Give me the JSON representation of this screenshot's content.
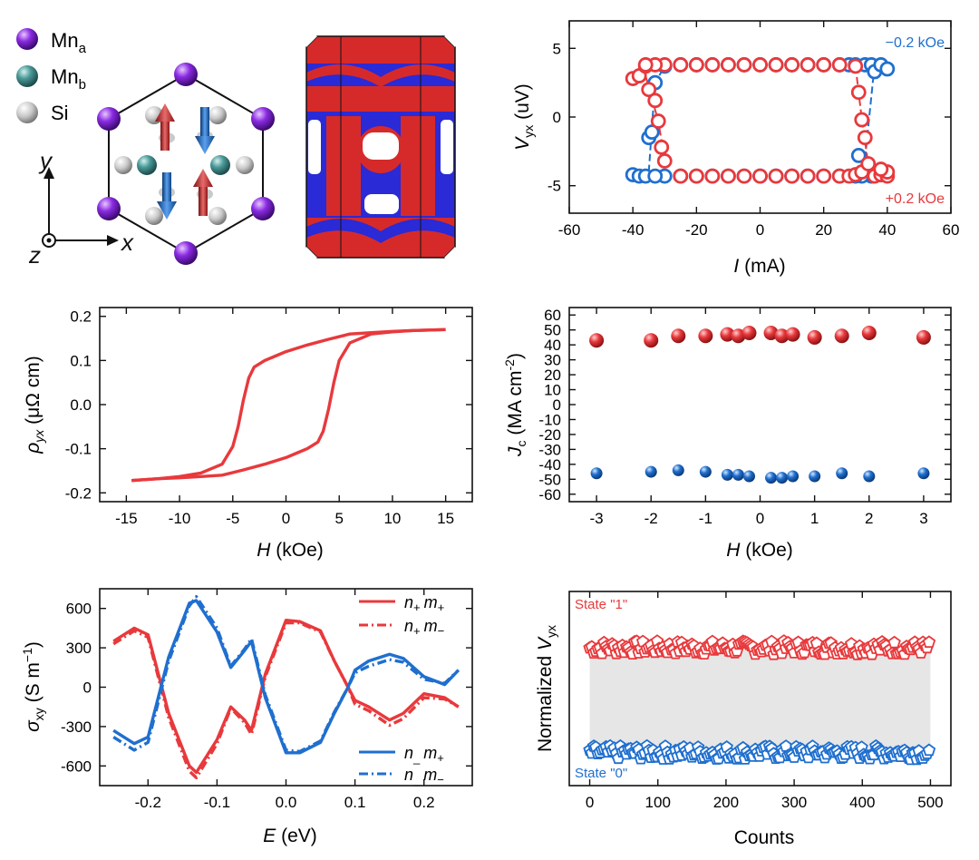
{
  "colors": {
    "red": "#e8393c",
    "blue": "#1f6fcf",
    "mn_a": "#7a2bd1",
    "mn_b": "#3f8a8a",
    "si": "#c8c8c8",
    "frame": "#111111",
    "grid_fill": "#e6e6e6"
  },
  "legend_atoms": [
    {
      "sym": "Mn",
      "sub": "a",
      "icon": "purple-sphere"
    },
    {
      "sym": "Mn",
      "sub": "b",
      "icon": "teal-sphere"
    },
    {
      "sym": "Si",
      "sub": "",
      "icon": "gray-sphere"
    }
  ],
  "axes_labels": {
    "y": "y",
    "z": "z",
    "x": "x"
  },
  "chart_data": [
    {
      "id": "vyx-vs-current",
      "type": "scatter",
      "xlabel_italic": "I",
      "xlabel_rest": " (mA)",
      "ylabel_italic": "V",
      "ylabel_sub": "yx",
      "ylabel_rest": " (uV)",
      "xlim": [
        -60,
        60
      ],
      "ylim": [
        -7,
        7
      ],
      "xticks": [
        -60,
        -40,
        -20,
        0,
        20,
        40,
        60
      ],
      "yticks": [
        -5,
        0,
        5
      ],
      "annotations": [
        {
          "text": "−0.2 kOe",
          "color": "blue"
        },
        {
          "text": "+0.2 kOe",
          "color": "red"
        }
      ],
      "series": [
        {
          "name": "−0.2 kOe",
          "color": "blue",
          "points": [
            [
              -40,
              -4.2
            ],
            [
              -38,
              -4.3
            ],
            [
              -36,
              -4.3
            ],
            [
              -35,
              -1.5
            ],
            [
              -34,
              -1.1
            ],
            [
              -33,
              2.5
            ],
            [
              -30,
              3.7
            ],
            [
              -25,
              3.8
            ],
            [
              -20,
              3.8
            ],
            [
              -15,
              3.8
            ],
            [
              -10,
              3.8
            ],
            [
              -5,
              3.8
            ],
            [
              0,
              3.8
            ],
            [
              5,
              3.8
            ],
            [
              10,
              3.8
            ],
            [
              15,
              3.8
            ],
            [
              20,
              3.8
            ],
            [
              25,
              3.8
            ],
            [
              28,
              3.8
            ],
            [
              30,
              3.8
            ],
            [
              33,
              3.8
            ],
            [
              35,
              3.8
            ],
            [
              36,
              3.3
            ],
            [
              38,
              3.8
            ],
            [
              40,
              3.5
            ],
            [
              38,
              -4.2
            ],
            [
              35,
              -4.3
            ],
            [
              32,
              -4.3
            ],
            [
              30,
              -4.3
            ],
            [
              31,
              -2.8
            ],
            [
              30,
              -4.2
            ],
            [
              25,
              -4.3
            ],
            [
              20,
              -4.3
            ],
            [
              15,
              -4.3
            ],
            [
              10,
              -4.3
            ],
            [
              5,
              -4.3
            ],
            [
              0,
              -4.3
            ],
            [
              -5,
              -4.3
            ],
            [
              -10,
              -4.3
            ],
            [
              -15,
              -4.3
            ],
            [
              -20,
              -4.3
            ],
            [
              -25,
              -4.3
            ],
            [
              -30,
              -4.3
            ],
            [
              -33,
              -4.3
            ]
          ]
        },
        {
          "name": "+0.2 kOe",
          "color": "red",
          "points": [
            [
              -40,
              2.8
            ],
            [
              -38,
              3.0
            ],
            [
              -36,
              3.7
            ],
            [
              -35,
              2.0
            ],
            [
              -33,
              1.2
            ],
            [
              -32,
              -0.3
            ],
            [
              -31,
              -2.2
            ],
            [
              -30,
              -3.2
            ],
            [
              -25,
              -4.3
            ],
            [
              -20,
              -4.3
            ],
            [
              -15,
              -4.3
            ],
            [
              -10,
              -4.3
            ],
            [
              -5,
              -4.3
            ],
            [
              0,
              -4.3
            ],
            [
              5,
              -4.3
            ],
            [
              10,
              -4.3
            ],
            [
              15,
              -4.3
            ],
            [
              20,
              -4.3
            ],
            [
              25,
              -4.3
            ],
            [
              28,
              -4.3
            ],
            [
              30,
              -4.2
            ],
            [
              32,
              -4.0
            ],
            [
              34,
              -3.4
            ],
            [
              36,
              -4.3
            ],
            [
              38,
              -4.2
            ],
            [
              40,
              -4.3
            ],
            [
              40,
              -4.0
            ],
            [
              38,
              -3.8
            ],
            [
              33,
              -1.5
            ],
            [
              32,
              -0.2
            ],
            [
              31,
              1.8
            ],
            [
              30,
              3.7
            ],
            [
              25,
              3.8
            ],
            [
              20,
              3.8
            ],
            [
              15,
              3.8
            ],
            [
              10,
              3.8
            ],
            [
              5,
              3.8
            ],
            [
              0,
              3.8
            ],
            [
              -5,
              3.8
            ],
            [
              -10,
              3.8
            ],
            [
              -15,
              3.8
            ],
            [
              -20,
              3.8
            ],
            [
              -25,
              3.8
            ],
            [
              -30,
              3.8
            ],
            [
              -33,
              3.8
            ],
            [
              -36,
              3.8
            ]
          ]
        }
      ],
      "guide_lines": [
        {
          "color": "blue",
          "points": [
            [
              -35,
              -4.0
            ],
            [
              -33,
              2.5
            ],
            [
              -30,
              3.7
            ]
          ]
        },
        {
          "color": "blue",
          "points": [
            [
              36,
              3.8
            ],
            [
              33,
              -3.0
            ],
            [
              31,
              -4.3
            ]
          ]
        },
        {
          "color": "red",
          "points": [
            [
              -36,
              3.0
            ],
            [
              -32,
              -0.3
            ],
            [
              -30,
              -3.2
            ]
          ]
        },
        {
          "color": "red",
          "points": [
            [
              30,
              3.7
            ],
            [
              32,
              -0.2
            ],
            [
              34,
              -3.4
            ]
          ]
        }
      ]
    },
    {
      "id": "rho-yx-vs-field",
      "type": "line",
      "xlabel_italic": "H",
      "xlabel_rest": " (kOe)",
      "ylabel_italic": "ρ",
      "ylabel_sub": "yx",
      "ylabel_rest": " (μΩ cm)",
      "xlim": [
        -17.5,
        17.5
      ],
      "ylim": [
        -0.22,
        0.22
      ],
      "xticks": [
        -15,
        -10,
        -5,
        0,
        5,
        10,
        15
      ],
      "yticks": [
        -0.2,
        -0.1,
        0.0,
        0.1,
        0.2
      ],
      "ytick_labels": [
        "-0.2",
        "-0.1",
        "0.0",
        "0.1",
        "0.2"
      ],
      "series": [
        {
          "name": "",
          "color": "red",
          "x": [
            -14.5,
            -12,
            -10,
            -8,
            -6,
            -5,
            -4.5,
            -4,
            -3.5,
            -3,
            -2,
            -1,
            0,
            2,
            4,
            6,
            8,
            10,
            12,
            15
          ],
          "y": [
            -0.172,
            -0.168,
            -0.163,
            -0.155,
            -0.135,
            -0.095,
            -0.05,
            0.01,
            0.06,
            0.085,
            0.1,
            0.11,
            0.12,
            0.135,
            0.148,
            0.16,
            0.163,
            0.166,
            0.168,
            0.17
          ]
        },
        {
          "name": "",
          "color": "red",
          "x": [
            15,
            12,
            10,
            8,
            6,
            5,
            4.5,
            4,
            3.5,
            3,
            2,
            1,
            0,
            -2,
            -4,
            -6,
            -8,
            -10,
            -12,
            -14.5
          ],
          "y": [
            0.17,
            0.168,
            0.165,
            0.16,
            0.14,
            0.1,
            0.05,
            -0.01,
            -0.06,
            -0.085,
            -0.1,
            -0.11,
            -0.12,
            -0.135,
            -0.148,
            -0.16,
            -0.163,
            -0.166,
            -0.168,
            -0.172
          ]
        }
      ]
    },
    {
      "id": "jc-vs-field",
      "type": "scatter",
      "xlabel_italic": "H",
      "xlabel_rest": " (kOe)",
      "ylabel_italic": "J",
      "ylabel_sub": "c",
      "ylabel_rest": " (MA cm",
      "ylabel_sup": "-2",
      "ylabel_tail": ")",
      "xlim": [
        -3.5,
        3.5
      ],
      "ylim": [
        -65,
        65
      ],
      "xticks": [
        -3,
        -2,
        -1,
        0,
        1,
        2,
        3
      ],
      "yticks": [
        -60,
        -50,
        -40,
        -30,
        -20,
        -10,
        0,
        10,
        20,
        30,
        40,
        50,
        60
      ],
      "series": [
        {
          "name": "",
          "color": "red",
          "x": [
            -3,
            -2,
            -1.5,
            -1,
            -0.6,
            -0.4,
            -0.2,
            0.2,
            0.4,
            0.6,
            1,
            1.5,
            2,
            3
          ],
          "y": [
            43,
            43,
            46,
            46,
            47,
            46,
            48,
            48,
            46,
            47,
            45,
            46,
            48,
            45
          ]
        },
        {
          "name": "",
          "color": "blue",
          "x": [
            -3,
            -2,
            -1.5,
            -1,
            -0.6,
            -0.4,
            -0.2,
            0.2,
            0.4,
            0.6,
            1,
            1.5,
            2,
            3
          ],
          "y": [
            -46,
            -45,
            -44,
            -45,
            -47,
            -47,
            -48,
            -49,
            -49,
            -48,
            -48,
            -46,
            -48,
            -46
          ]
        }
      ]
    },
    {
      "id": "sigma-xy-vs-energy",
      "type": "line",
      "xlabel_italic": "E",
      "xlabel_rest": " (eV)",
      "ylabel_italic": "σ",
      "ylabel_sub": "xy",
      "ylabel_rest": " (S m",
      "ylabel_sup": "−1",
      "ylabel_tail": ")",
      "xlim": [
        -0.27,
        0.27
      ],
      "ylim": [
        -750,
        750
      ],
      "xticks": [
        -0.2,
        -0.1,
        0.0,
        0.1,
        0.2
      ],
      "xtick_labels": [
        "-0.2",
        "-0.1",
        "0.0",
        "0.1",
        "0.2"
      ],
      "yticks": [
        -600,
        -300,
        0,
        300,
        600
      ],
      "ytick_labels": [
        "-600",
        "-300",
        "0",
        "300",
        "600"
      ],
      "series": [
        {
          "name": "n+ m+",
          "label_n": "n",
          "label_ns": "+",
          "label_m": "m",
          "label_ms": "+",
          "color": "red",
          "dash": "solid",
          "x": [
            -0.25,
            -0.22,
            -0.2,
            -0.17,
            -0.14,
            -0.13,
            -0.1,
            -0.08,
            -0.06,
            -0.05,
            -0.03,
            0.0,
            0.02,
            0.05,
            0.07,
            0.09,
            0.1,
            0.12,
            0.15,
            0.17,
            0.2,
            0.23,
            0.25
          ],
          "y": [
            350,
            450,
            400,
            -200,
            -600,
            -650,
            -400,
            -150,
            -250,
            -330,
            100,
            510,
            500,
            430,
            200,
            0,
            -100,
            -150,
            -250,
            -200,
            -50,
            -80,
            -150
          ]
        },
        {
          "name": "n+ m−",
          "label_n": "n",
          "label_ns": "+",
          "label_m": "m",
          "label_ms": "−",
          "color": "red",
          "dash": "dashdot",
          "x": [
            -0.25,
            -0.22,
            -0.2,
            -0.17,
            -0.14,
            -0.13,
            -0.1,
            -0.08,
            -0.06,
            -0.05,
            -0.03,
            0.0,
            0.02,
            0.05,
            0.07,
            0.09,
            0.1,
            0.12,
            0.15,
            0.17,
            0.2,
            0.23,
            0.25
          ],
          "y": [
            330,
            430,
            380,
            -230,
            -640,
            -690,
            -430,
            -160,
            -270,
            -360,
            80,
            490,
            490,
            420,
            200,
            0,
            -130,
            -180,
            -290,
            -240,
            -80,
            -90,
            -150
          ]
        },
        {
          "name": "n− m+",
          "label_n": "n",
          "label_ns": "_",
          "label_m": "m",
          "label_ms": "+",
          "color": "blue",
          "dash": "solid",
          "x": [
            -0.25,
            -0.22,
            -0.2,
            -0.17,
            -0.14,
            -0.13,
            -0.1,
            -0.08,
            -0.06,
            -0.05,
            -0.03,
            0.0,
            0.02,
            0.05,
            0.07,
            0.09,
            0.1,
            0.12,
            0.15,
            0.17,
            0.2,
            0.23,
            0.25
          ],
          "y": [
            -330,
            -430,
            -380,
            230,
            640,
            660,
            420,
            150,
            280,
            350,
            -80,
            -500,
            -500,
            -420,
            -200,
            0,
            130,
            200,
            250,
            220,
            80,
            20,
            130
          ]
        },
        {
          "name": "n− m−",
          "label_n": "n",
          "label_ns": "_",
          "label_m": "m",
          "label_ms": "−",
          "color": "blue",
          "dash": "dashdot",
          "x": [
            -0.25,
            -0.22,
            -0.2,
            -0.17,
            -0.14,
            -0.13,
            -0.1,
            -0.08,
            -0.06,
            -0.05,
            -0.03,
            0.0,
            0.02,
            0.05,
            0.07,
            0.09,
            0.1,
            0.12,
            0.15,
            0.17,
            0.2,
            0.23,
            0.25
          ],
          "y": [
            -380,
            -480,
            -420,
            200,
            620,
            690,
            450,
            160,
            290,
            370,
            -60,
            -480,
            -490,
            -410,
            -190,
            0,
            110,
            160,
            210,
            190,
            60,
            30,
            130
          ]
        }
      ]
    },
    {
      "id": "normalized-vyx-vs-counts",
      "type": "scatter",
      "xlabel": "Counts",
      "ylabel_pre": "Normalized ",
      "ylabel_italic": "V",
      "ylabel_sub": "yx",
      "xlim": [
        -30,
        530
      ],
      "ylim": [
        0,
        1
      ],
      "xticks": [
        0,
        100,
        200,
        300,
        400,
        500
      ],
      "state_labels": [
        {
          "text": "State \"1\"",
          "color": "red"
        },
        {
          "text": "State \"0\"",
          "color": "blue"
        }
      ],
      "series": [
        {
          "name": "State \"1\"",
          "color": "red",
          "level": 0.71,
          "spread": 0.035
        },
        {
          "name": "State \"0\"",
          "color": "blue",
          "level": 0.17,
          "spread": 0.035
        }
      ]
    }
  ]
}
